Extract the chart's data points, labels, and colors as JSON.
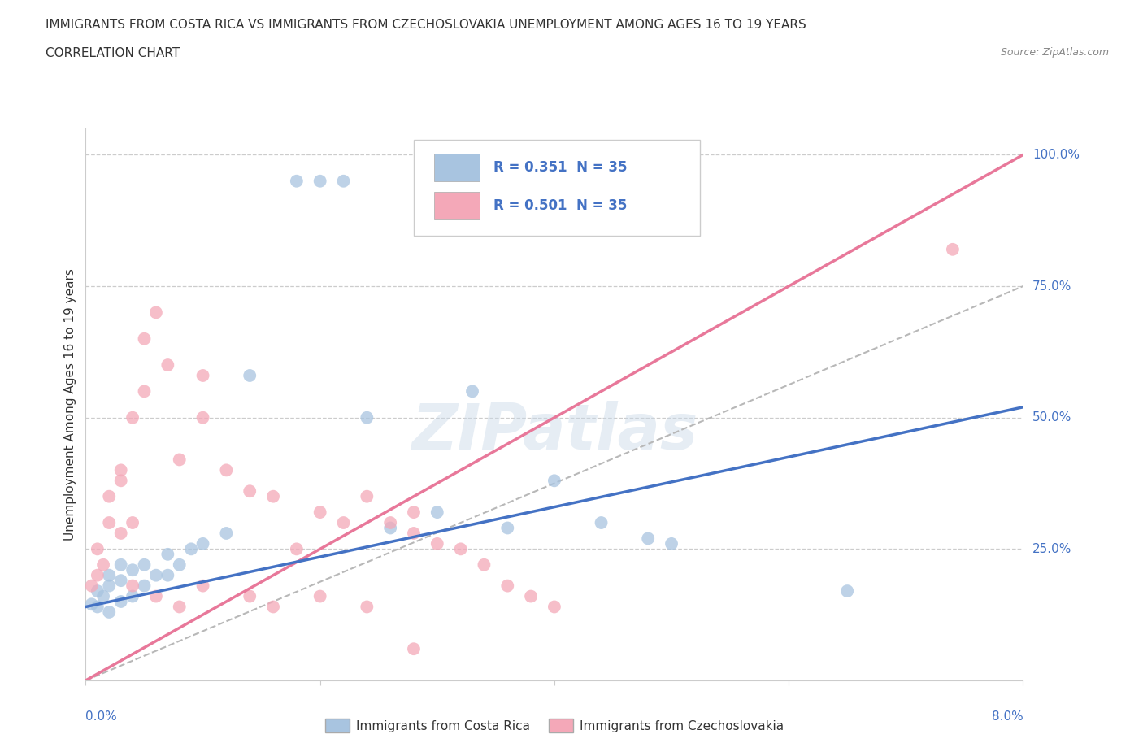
{
  "title_line1": "IMMIGRANTS FROM COSTA RICA VS IMMIGRANTS FROM CZECHOSLOVAKIA UNEMPLOYMENT AMONG AGES 16 TO 19 YEARS",
  "title_line2": "CORRELATION CHART",
  "source_text": "Source: ZipAtlas.com",
  "ylabel": "Unemployment Among Ages 16 to 19 years",
  "blue_R": 0.351,
  "pink_R": 0.501,
  "N": 35,
  "legend_label_blue": "Immigrants from Costa Rica",
  "legend_label_pink": "Immigrants from Czechoslovakia",
  "watermark": "ZIPatlas",
  "blue_color": "#a8c4e0",
  "pink_color": "#f4a8b8",
  "blue_line_color": "#4472c4",
  "pink_line_color": "#e8789a",
  "dashed_line_color": "#b8b8b8",
  "background_color": "#ffffff",
  "grid_color": "#cccccc",
  "xmin": 0.0,
  "xmax": 0.08,
  "ymin": 0.0,
  "ymax": 1.05,
  "blue_line_x0": 0.0,
  "blue_line_y0": 0.14,
  "blue_line_x1": 0.08,
  "blue_line_y1": 0.52,
  "pink_line_x0": 0.0,
  "pink_line_y0": 0.0,
  "pink_line_x1": 0.08,
  "pink_line_y1": 1.0,
  "dash_line_x0": 0.0,
  "dash_line_y0": 0.0,
  "dash_line_x1": 0.08,
  "dash_line_y1": 0.75,
  "cr_x": [
    0.0005,
    0.001,
    0.001,
    0.0015,
    0.002,
    0.002,
    0.002,
    0.003,
    0.003,
    0.003,
    0.004,
    0.004,
    0.005,
    0.005,
    0.006,
    0.007,
    0.007,
    0.008,
    0.009,
    0.01,
    0.012,
    0.014,
    0.018,
    0.02,
    0.022,
    0.024,
    0.026,
    0.03,
    0.033,
    0.036,
    0.04,
    0.044,
    0.048,
    0.05,
    0.065
  ],
  "cr_y": [
    0.145,
    0.14,
    0.17,
    0.16,
    0.13,
    0.18,
    0.2,
    0.15,
    0.19,
    0.22,
    0.16,
    0.21,
    0.18,
    0.22,
    0.2,
    0.2,
    0.24,
    0.22,
    0.25,
    0.26,
    0.28,
    0.58,
    0.95,
    0.95,
    0.95,
    0.5,
    0.29,
    0.32,
    0.55,
    0.29,
    0.38,
    0.3,
    0.27,
    0.26,
    0.17
  ],
  "cz_x": [
    0.0005,
    0.001,
    0.001,
    0.0015,
    0.002,
    0.002,
    0.003,
    0.003,
    0.003,
    0.004,
    0.004,
    0.005,
    0.005,
    0.006,
    0.007,
    0.008,
    0.01,
    0.01,
    0.012,
    0.014,
    0.016,
    0.018,
    0.02,
    0.022,
    0.024,
    0.026,
    0.028,
    0.028,
    0.03,
    0.032,
    0.034,
    0.036,
    0.038,
    0.04,
    0.074
  ],
  "cz_y": [
    0.18,
    0.2,
    0.25,
    0.22,
    0.3,
    0.35,
    0.28,
    0.38,
    0.4,
    0.3,
    0.5,
    0.55,
    0.65,
    0.7,
    0.6,
    0.42,
    0.5,
    0.58,
    0.4,
    0.36,
    0.35,
    0.25,
    0.32,
    0.3,
    0.35,
    0.3,
    0.32,
    0.28,
    0.26,
    0.25,
    0.22,
    0.18,
    0.16,
    0.14,
    0.82
  ],
  "cz_low_x": [
    0.004,
    0.006,
    0.008,
    0.01,
    0.014,
    0.016,
    0.02,
    0.024,
    0.028
  ],
  "cz_low_y": [
    0.18,
    0.16,
    0.14,
    0.18,
    0.16,
    0.14,
    0.16,
    0.14,
    0.06
  ]
}
